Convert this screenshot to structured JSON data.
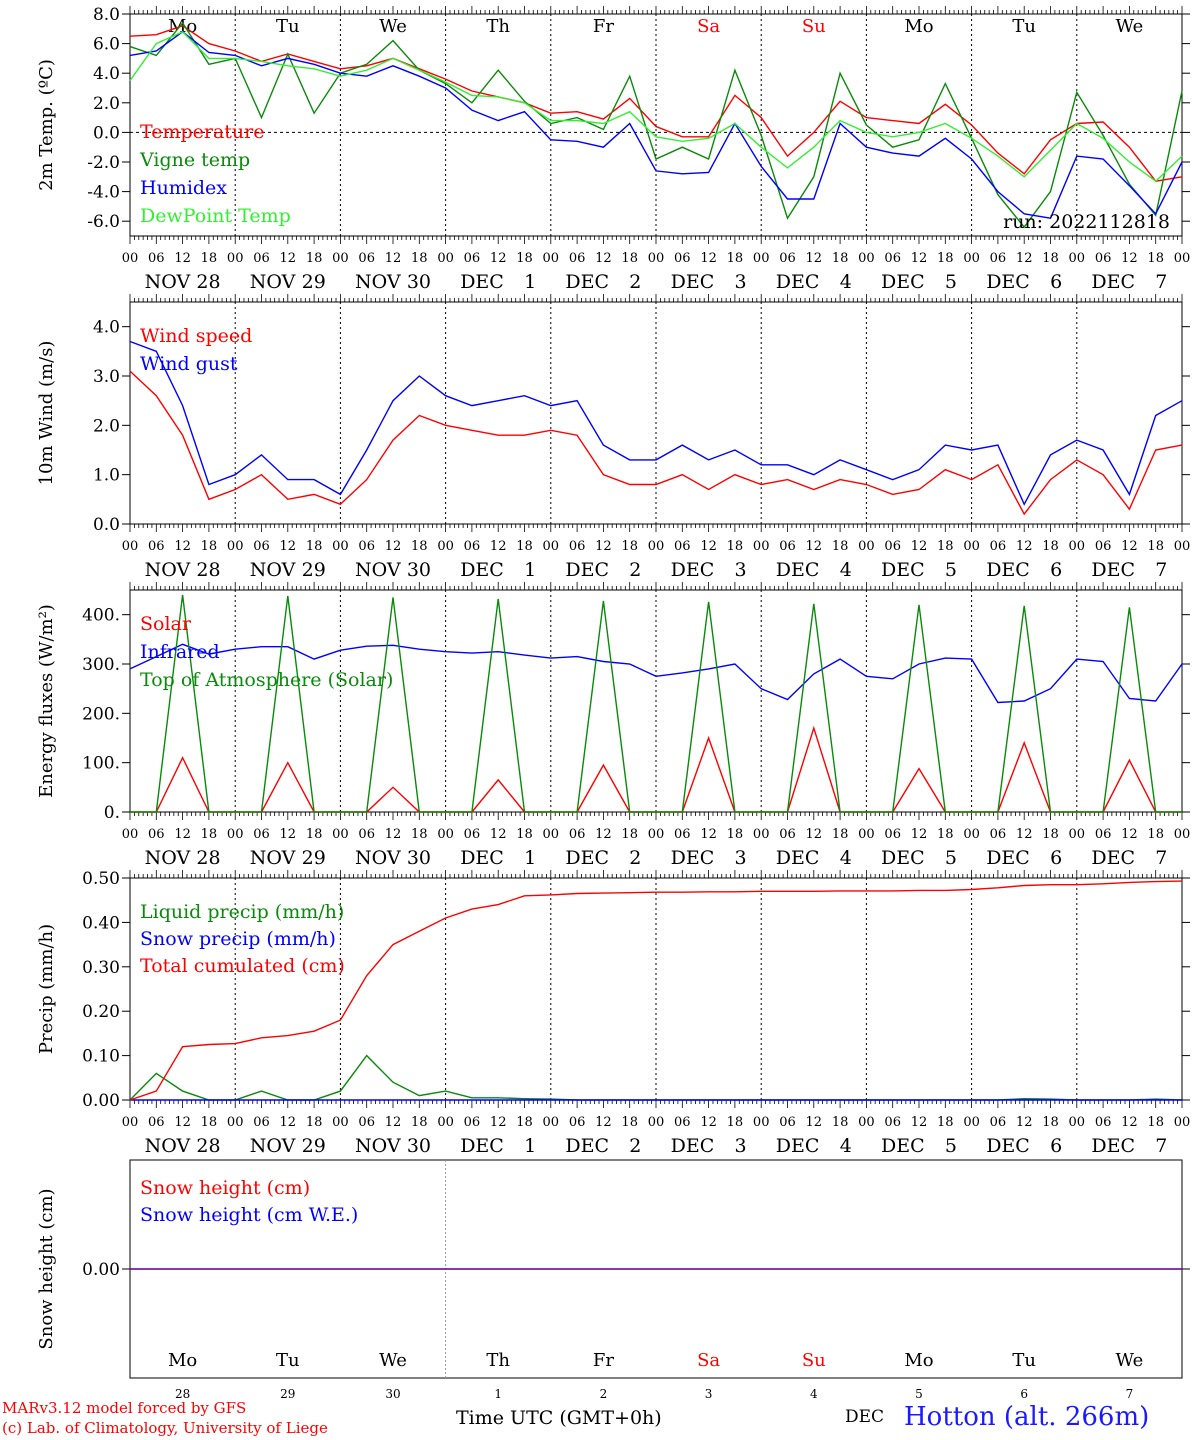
{
  "colors": {
    "red": "#ff0000",
    "darkgreen": "#0a8a0a",
    "blue": "#0000ff",
    "lightgreen": "#33ee33",
    "navy": "#0a10b0",
    "purple": "#7a1aa8",
    "black": "#000000"
  },
  "days": [
    {
      "weekday": "Mo",
      "month": "NOV",
      "daynum": "28",
      "weekend": false
    },
    {
      "weekday": "Tu",
      "month": "NOV",
      "daynum": "29",
      "weekend": false
    },
    {
      "weekday": "We",
      "month": "NOV",
      "daynum": "30",
      "weekend": false
    },
    {
      "weekday": "Th",
      "month": "DEC",
      "daynum": "1",
      "weekend": false
    },
    {
      "weekday": "Fr",
      "month": "DEC",
      "daynum": "2",
      "weekend": false
    },
    {
      "weekday": "Sa",
      "month": "DEC",
      "daynum": "3",
      "weekend": true
    },
    {
      "weekday": "Su",
      "month": "DEC",
      "daynum": "4",
      "weekend": true
    },
    {
      "weekday": "Mo",
      "month": "DEC",
      "daynum": "5",
      "weekend": false
    },
    {
      "weekday": "Tu",
      "month": "DEC",
      "daynum": "6",
      "weekend": false
    },
    {
      "weekday": "We",
      "month": "DEC",
      "daynum": "7",
      "weekend": false
    }
  ],
  "hour_ticks": [
    "00",
    "06",
    "12",
    "18"
  ],
  "chart_data": [
    {
      "type": "line",
      "ylabel": "2m Temp. (ºC)",
      "ylim": [
        -7,
        8
      ],
      "yticks": [
        "8.0",
        "6.0",
        "4.0",
        "2.0",
        "0.0",
        "-2.0",
        "-4.0",
        "-6.0"
      ],
      "ytick_values": [
        8,
        6,
        4,
        2,
        0,
        -2,
        -4,
        -6
      ],
      "zero_line": true,
      "annotation": "run: 2022112818",
      "x_hours": [
        0,
        6,
        12,
        18,
        24,
        30,
        36,
        42,
        48,
        54,
        60,
        66,
        72,
        78,
        84,
        90,
        96,
        102,
        108,
        114,
        120,
        126,
        132,
        138,
        144,
        150,
        156,
        162,
        168,
        174,
        180,
        186,
        192,
        198,
        204,
        210,
        216,
        222,
        228,
        234,
        240
      ],
      "series": [
        {
          "name": "Temperature",
          "color": "red",
          "values": [
            6.5,
            6.6,
            7.2,
            6.0,
            5.5,
            4.8,
            5.3,
            4.8,
            4.3,
            4.5,
            5.0,
            4.3,
            3.6,
            2.8,
            2.4,
            2.0,
            1.3,
            1.4,
            0.9,
            2.3,
            0.4,
            -0.3,
            -0.3,
            2.5,
            1.0,
            -1.6,
            0.0,
            2.1,
            1.0,
            0.8,
            0.6,
            1.9,
            0.5,
            -1.4,
            -2.8,
            -0.5,
            0.6,
            0.7,
            -1.0,
            -3.3,
            -3.0
          ]
        },
        {
          "name": "Vigne temp",
          "color": "darkgreen",
          "values": [
            5.8,
            5.2,
            7.4,
            4.6,
            5.0,
            1.0,
            5.3,
            1.3,
            4.0,
            4.6,
            6.2,
            4.2,
            3.3,
            2.0,
            4.2,
            2.1,
            0.6,
            1.0,
            0.2,
            3.8,
            -1.8,
            -1.0,
            -1.8,
            4.2,
            -0.2,
            -5.8,
            -3.0,
            4.0,
            0.5,
            -1.0,
            -0.5,
            3.3,
            -0.4,
            -4.2,
            -6.4,
            -4.0,
            2.7,
            -0.2,
            -3.5,
            -5.6,
            2.8
          ]
        },
        {
          "name": "Humidex",
          "color": "blue",
          "values": [
            5.2,
            5.5,
            6.8,
            5.4,
            5.2,
            4.5,
            5.0,
            4.6,
            4.0,
            3.8,
            4.5,
            3.8,
            3.0,
            1.5,
            0.8,
            1.4,
            -0.5,
            -0.6,
            -1.0,
            0.6,
            -2.6,
            -2.8,
            -2.7,
            0.6,
            -2.3,
            -4.5,
            -4.5,
            0.6,
            -1.0,
            -1.4,
            -1.6,
            -0.4,
            -1.8,
            -4.0,
            -5.5,
            -5.8,
            -1.6,
            -1.8,
            -3.6,
            -5.5,
            -2.0
          ]
        },
        {
          "name": "DewPoint Temp",
          "color": "lightgreen",
          "values": [
            3.5,
            6.0,
            6.8,
            5.0,
            5.0,
            4.8,
            4.5,
            4.3,
            3.8,
            4.2,
            5.0,
            4.2,
            3.4,
            2.5,
            2.4,
            2.0,
            0.8,
            0.8,
            0.6,
            1.4,
            -0.3,
            -0.6,
            -0.4,
            0.6,
            -1.0,
            -2.4,
            -1.0,
            0.8,
            0.0,
            -0.3,
            0.0,
            0.6,
            -0.4,
            -1.6,
            -3.0,
            -1.2,
            0.6,
            -0.4,
            -2.0,
            -3.3,
            -1.6
          ]
        }
      ]
    },
    {
      "type": "line",
      "ylabel": "10m Wind (m/s)",
      "ylim": [
        0,
        4.5
      ],
      "yticks": [
        "4.0",
        "3.0",
        "2.0",
        "1.0",
        "0.0"
      ],
      "ytick_values": [
        4,
        3,
        2,
        1,
        0
      ],
      "x_hours": [
        0,
        6,
        12,
        18,
        24,
        30,
        36,
        42,
        48,
        54,
        60,
        66,
        72,
        78,
        84,
        90,
        96,
        102,
        108,
        114,
        120,
        126,
        132,
        138,
        144,
        150,
        156,
        162,
        168,
        174,
        180,
        186,
        192,
        198,
        204,
        210,
        216,
        222,
        228,
        234,
        240
      ],
      "series": [
        {
          "name": "Wind speed",
          "color": "red",
          "values": [
            3.1,
            2.6,
            1.8,
            0.5,
            0.7,
            1.0,
            0.5,
            0.6,
            0.4,
            0.9,
            1.7,
            2.2,
            2.0,
            1.9,
            1.8,
            1.8,
            1.9,
            1.8,
            1.0,
            0.8,
            0.8,
            1.0,
            0.7,
            1.0,
            0.8,
            0.9,
            0.7,
            0.9,
            0.8,
            0.6,
            0.7,
            1.1,
            0.9,
            1.2,
            0.2,
            0.9,
            1.3,
            1.0,
            0.3,
            1.5,
            1.6
          ]
        },
        {
          "name": "Wind gust",
          "color": "blue",
          "values": [
            3.7,
            3.5,
            2.4,
            0.8,
            1.0,
            1.4,
            0.9,
            0.9,
            0.6,
            1.5,
            2.5,
            3.0,
            2.6,
            2.4,
            2.5,
            2.6,
            2.4,
            2.5,
            1.6,
            1.3,
            1.3,
            1.6,
            1.3,
            1.5,
            1.2,
            1.2,
            1.0,
            1.3,
            1.1,
            0.9,
            1.1,
            1.6,
            1.5,
            1.6,
            0.4,
            1.4,
            1.7,
            1.5,
            0.6,
            2.2,
            2.5
          ]
        }
      ]
    },
    {
      "type": "line",
      "ylabel": "Energy fluxes (W/m²)",
      "ylim": [
        0,
        450
      ],
      "yticks": [
        "400.",
        "300.",
        "200.",
        "100.",
        "0."
      ],
      "ytick_values": [
        400,
        300,
        200,
        100,
        0
      ],
      "x_hours": [
        0,
        6,
        12,
        18,
        24,
        30,
        36,
        42,
        48,
        54,
        60,
        66,
        72,
        78,
        84,
        90,
        96,
        102,
        108,
        114,
        120,
        126,
        132,
        138,
        144,
        150,
        156,
        162,
        168,
        174,
        180,
        186,
        192,
        198,
        204,
        210,
        216,
        222,
        228,
        234,
        240
      ],
      "series": [
        {
          "name": "Solar",
          "color": "red",
          "values": [
            0,
            0,
            110,
            0,
            0,
            0,
            100,
            0,
            0,
            0,
            50,
            0,
            0,
            0,
            65,
            0,
            0,
            0,
            95,
            0,
            0,
            0,
            150,
            0,
            0,
            0,
            170,
            0,
            0,
            0,
            88,
            0,
            0,
            0,
            140,
            0,
            0,
            0,
            105,
            0,
            0
          ]
        },
        {
          "name": "Infrared",
          "color": "blue",
          "values": [
            290,
            315,
            340,
            320,
            330,
            335,
            335,
            310,
            328,
            336,
            338,
            330,
            325,
            322,
            325,
            318,
            312,
            315,
            305,
            300,
            275,
            282,
            290,
            300,
            250,
            228,
            280,
            310,
            275,
            270,
            300,
            312,
            310,
            222,
            225,
            250,
            310,
            305,
            230,
            225,
            300
          ]
        },
        {
          "name": "Top of Atmosphere (Solar)",
          "color": "darkgreen",
          "values": [
            0,
            0,
            440,
            0,
            0,
            0,
            438,
            0,
            0,
            0,
            435,
            0,
            0,
            0,
            432,
            0,
            0,
            0,
            428,
            0,
            0,
            0,
            426,
            0,
            0,
            0,
            422,
            0,
            0,
            0,
            420,
            0,
            0,
            0,
            418,
            0,
            0,
            0,
            415,
            0,
            0
          ]
        }
      ]
    },
    {
      "type": "line",
      "ylabel": "Precip (mm/h)",
      "ylim": [
        0,
        0.5
      ],
      "yticks": [
        "0.50",
        "0.40",
        "0.30",
        "0.20",
        "0.10",
        "0.00"
      ],
      "ytick_values": [
        0.5,
        0.4,
        0.3,
        0.2,
        0.1,
        0
      ],
      "x_hours": [
        0,
        6,
        12,
        18,
        24,
        30,
        36,
        42,
        48,
        54,
        60,
        66,
        72,
        78,
        84,
        90,
        96,
        102,
        108,
        114,
        120,
        126,
        132,
        138,
        144,
        150,
        156,
        162,
        168,
        174,
        180,
        186,
        192,
        198,
        204,
        210,
        216,
        222,
        228,
        234,
        240
      ],
      "series": [
        {
          "name": "Liquid precip (mm/h)",
          "color": "darkgreen",
          "values": [
            0,
            0.06,
            0.02,
            0,
            0,
            0.02,
            0,
            0,
            0.02,
            0.1,
            0.04,
            0.01,
            0.02,
            0.005,
            0.005,
            0.003,
            0.002,
            0,
            0,
            0,
            0,
            0,
            0,
            0,
            0,
            0,
            0,
            0,
            0,
            0,
            0,
            0,
            0,
            0,
            0.003,
            0.002,
            0,
            0,
            0,
            0.002,
            0
          ]
        },
        {
          "name": "Snow precip (mm/h)",
          "color": "blue",
          "values": [
            0,
            0,
            0,
            0,
            0,
            0,
            0,
            0,
            0,
            0,
            0,
            0,
            0,
            0,
            0,
            0,
            0,
            0,
            0,
            0,
            0,
            0,
            0,
            0,
            0,
            0,
            0,
            0,
            0,
            0,
            0,
            0,
            0,
            0,
            0,
            0,
            0,
            0,
            0,
            0,
            0
          ]
        },
        {
          "name": "Total cumulated (cm)",
          "color": "red",
          "values": [
            0,
            0.02,
            0.12,
            0.125,
            0.127,
            0.14,
            0.145,
            0.155,
            0.18,
            0.28,
            0.35,
            0.38,
            0.41,
            0.43,
            0.44,
            0.46,
            0.462,
            0.465,
            0.466,
            0.467,
            0.468,
            0.468,
            0.469,
            0.469,
            0.47,
            0.47,
            0.47,
            0.471,
            0.471,
            0.471,
            0.472,
            0.472,
            0.474,
            0.478,
            0.483,
            0.485,
            0.485,
            0.487,
            0.49,
            0.492,
            0.493
          ]
        }
      ]
    },
    {
      "type": "line",
      "ylabel": "Snow height (cm)",
      "ylim": [
        -1,
        1
      ],
      "yticks": [
        "0.00"
      ],
      "ytick_values": [
        0
      ],
      "x_hours": [
        0,
        240
      ],
      "series": [
        {
          "name": "Snow height (cm)",
          "color": "red",
          "values": [
            0,
            0
          ]
        },
        {
          "name": "Snow height (cm W.E.)",
          "color": "blue",
          "values": [
            0,
            0
          ]
        }
      ]
    }
  ],
  "footer": {
    "credit1": "MARv3.12 model forced by GFS",
    "credit2": "(c) Lab. of Climatology, University of Liege",
    "xlabel": "Time UTC (GMT+0h)",
    "month": "DEC",
    "station": "Hotton (alt. 266m)"
  }
}
